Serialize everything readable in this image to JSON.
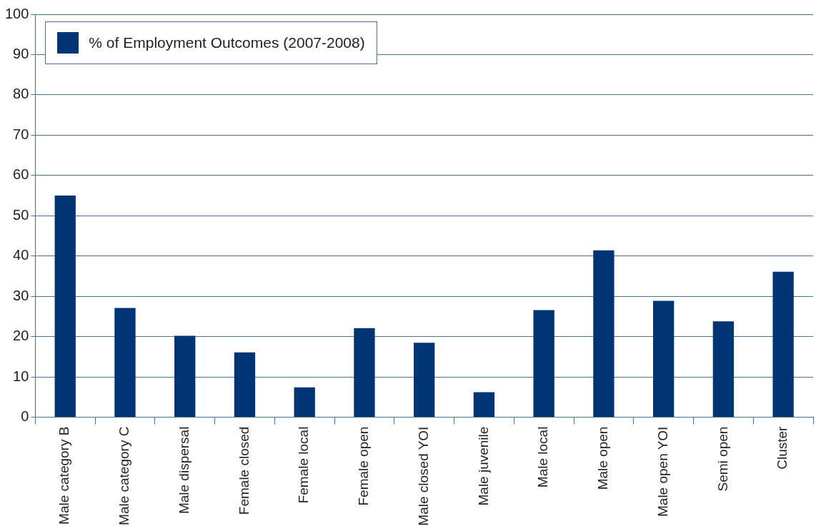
{
  "chart_data": {
    "type": "bar",
    "categories": [
      "Male category B",
      "Male category C",
      "Male dispersal",
      "Female closed",
      "Female local",
      "Female open",
      "Male closed YOI",
      "Male juvenile",
      "Male local",
      "Male open",
      "Male open YOI",
      "Semi open",
      "Cluster"
    ],
    "series": [
      {
        "name": "% of Employment Outcomes (2007-2008)",
        "color": "#003473",
        "values": [
          55,
          27.1,
          20.2,
          16.1,
          7.4,
          22.1,
          18.5,
          6.2,
          26.6,
          41.4,
          28.9,
          23.8,
          36.1
        ]
      }
    ],
    "ylim": [
      0,
      100
    ],
    "yticks": [
      0,
      10,
      20,
      30,
      40,
      50,
      60,
      70,
      80,
      90,
      100
    ],
    "grid": "y",
    "legend": "top left"
  }
}
